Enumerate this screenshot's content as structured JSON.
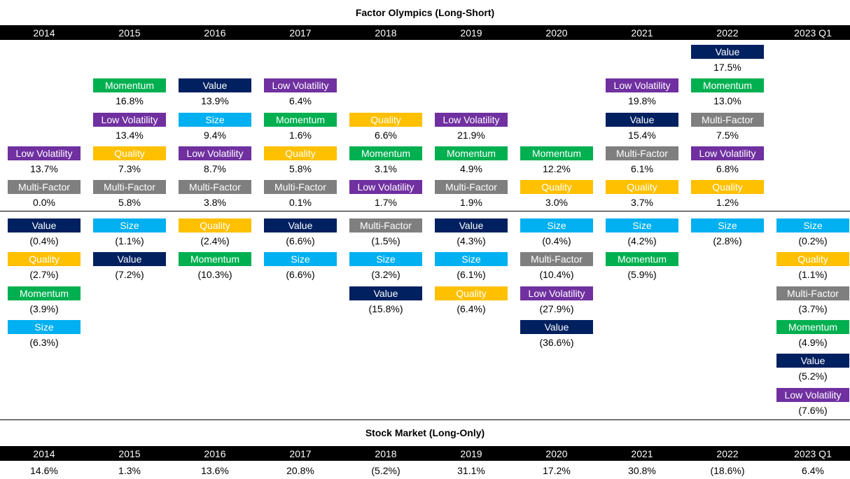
{
  "title": "Factor Olympics (Long-Short)",
  "colors": {
    "Value": "#002060",
    "Size": "#00b0f0",
    "Quality": "#ffc000",
    "Momentum": "#00b050",
    "Low Volatility": "#7030a0",
    "Multi-Factor": "#7f7f7f"
  },
  "columns": [
    {
      "year": "2014",
      "positive": [
        {
          "factor": "Low Volatility",
          "value": "13.7%"
        },
        {
          "factor": "Multi-Factor",
          "value": "0.0%"
        }
      ],
      "negative": [
        {
          "factor": "Value",
          "value": "(0.4%)"
        },
        {
          "factor": "Quality",
          "value": "(2.7%)"
        },
        {
          "factor": "Momentum",
          "value": "(3.9%)"
        },
        {
          "factor": "Size",
          "value": "(6.3%)"
        }
      ]
    },
    {
      "year": "2015",
      "positive": [
        {
          "factor": "Momentum",
          "value": "16.8%"
        },
        {
          "factor": "Low Volatility",
          "value": "13.4%"
        },
        {
          "factor": "Quality",
          "value": "7.3%"
        },
        {
          "factor": "Multi-Factor",
          "value": "5.8%"
        }
      ],
      "negative": [
        {
          "factor": "Size",
          "value": "(1.1%)"
        },
        {
          "factor": "Value",
          "value": "(7.2%)"
        }
      ]
    },
    {
      "year": "2016",
      "positive": [
        {
          "factor": "Value",
          "value": "13.9%"
        },
        {
          "factor": "Size",
          "value": "9.4%"
        },
        {
          "factor": "Low Volatility",
          "value": "8.7%"
        },
        {
          "factor": "Multi-Factor",
          "value": "3.8%"
        }
      ],
      "negative": [
        {
          "factor": "Quality",
          "value": "(2.4%)"
        },
        {
          "factor": "Momentum",
          "value": "(10.3%)"
        }
      ]
    },
    {
      "year": "2017",
      "positive": [
        {
          "factor": "Low Volatility",
          "value": "6.4%"
        },
        {
          "factor": "Momentum",
          "value": "1.6%"
        },
        {
          "factor": "Quality",
          "value": "5.8%"
        },
        {
          "factor": "Multi-Factor",
          "value": "0.1%"
        }
      ],
      "negative": [
        {
          "factor": "Value",
          "value": "(6.6%)"
        },
        {
          "factor": "Size",
          "value": "(6.6%)"
        }
      ]
    },
    {
      "year": "2018",
      "positive": [
        {
          "factor": "Quality",
          "value": "6.6%"
        },
        {
          "factor": "Momentum",
          "value": "3.1%"
        },
        {
          "factor": "Low Volatility",
          "value": "1.7%"
        }
      ],
      "negative": [
        {
          "factor": "Multi-Factor",
          "value": "(1.5%)"
        },
        {
          "factor": "Size",
          "value": "(3.2%)"
        },
        {
          "factor": "Value",
          "value": "(15.8%)"
        }
      ]
    },
    {
      "year": "2019",
      "positive": [
        {
          "factor": "Low Volatility",
          "value": "21.9%"
        },
        {
          "factor": "Momentum",
          "value": "4.9%"
        },
        {
          "factor": "Multi-Factor",
          "value": "1.9%"
        }
      ],
      "negative": [
        {
          "factor": "Value",
          "value": "(4.3%)"
        },
        {
          "factor": "Size",
          "value": "(6.1%)"
        },
        {
          "factor": "Quality",
          "value": "(6.4%)"
        }
      ]
    },
    {
      "year": "2020",
      "positive": [
        {
          "factor": "Momentum",
          "value": "12.2%"
        },
        {
          "factor": "Quality",
          "value": "3.0%"
        }
      ],
      "negative": [
        {
          "factor": "Size",
          "value": "(0.4%)"
        },
        {
          "factor": "Multi-Factor",
          "value": "(10.4%)"
        },
        {
          "factor": "Low Volatility",
          "value": "(27.9%)"
        },
        {
          "factor": "Value",
          "value": "(36.6%)"
        }
      ]
    },
    {
      "year": "2021",
      "positive": [
        {
          "factor": "Low Volatility",
          "value": "19.8%"
        },
        {
          "factor": "Value",
          "value": "15.4%"
        },
        {
          "factor": "Multi-Factor",
          "value": "6.1%"
        },
        {
          "factor": "Quality",
          "value": "3.7%"
        }
      ],
      "negative": [
        {
          "factor": "Size",
          "value": "(4.2%)"
        },
        {
          "factor": "Momentum",
          "value": "(5.9%)"
        }
      ]
    },
    {
      "year": "2022",
      "positive": [
        {
          "factor": "Value",
          "value": "17.5%"
        },
        {
          "factor": "Momentum",
          "value": "13.0%"
        },
        {
          "factor": "Multi-Factor",
          "value": "7.5%"
        },
        {
          "factor": "Low Volatility",
          "value": "6.8%"
        },
        {
          "factor": "Quality",
          "value": "1.2%"
        }
      ],
      "negative": [
        {
          "factor": "Size",
          "value": "(2.8%)"
        }
      ]
    },
    {
      "year": "2023 Q1",
      "positive": [],
      "negative": [
        {
          "factor": "Size",
          "value": "(0.2%)"
        },
        {
          "factor": "Quality",
          "value": "(1.1%)"
        },
        {
          "factor": "Multi-Factor",
          "value": "(3.7%)"
        },
        {
          "factor": "Momentum",
          "value": "(4.9%)"
        },
        {
          "factor": "Value",
          "value": "(5.2%)"
        },
        {
          "factor": "Low Volatility",
          "value": "(7.6%)"
        }
      ]
    }
  ],
  "stock_market": {
    "title": "Stock Market (Long-Only)",
    "values": [
      "14.6%",
      "1.3%",
      "13.6%",
      "20.8%",
      "(5.2%)",
      "31.1%",
      "17.2%",
      "30.8%",
      "(18.6%)",
      "6.4%"
    ]
  }
}
